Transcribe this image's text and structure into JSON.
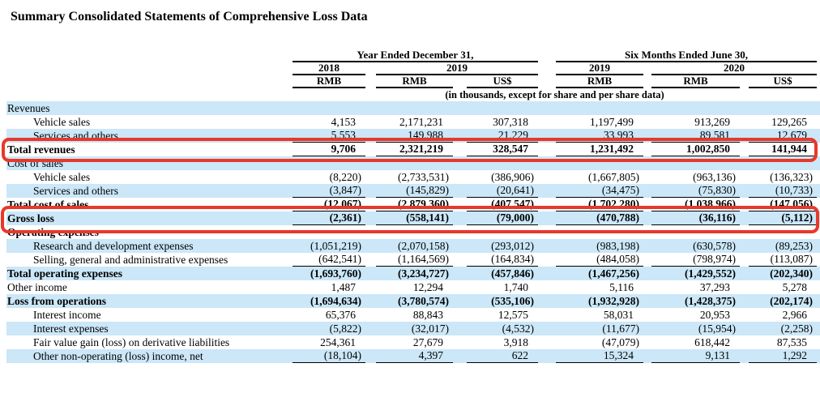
{
  "title": "Summary Consolidated Statements of Comprehensive Loss Data",
  "colors": {
    "highlight": "#e8382a",
    "row_shade": "#cbe7f8"
  },
  "highlighted_rows": [
    "Total revenues",
    "Gross loss"
  ],
  "table": {
    "col_groups": [
      "Year Ended December 31,",
      "Six Months Ended June 30,"
    ],
    "years": [
      "2018",
      "2019",
      "2019",
      "2020"
    ],
    "currencies": [
      "RMB",
      "RMB",
      "US$",
      "RMB",
      "RMB",
      "US$"
    ],
    "note": "(in thousands, except for share and per share data)",
    "rows": [
      {
        "label": "Revenues",
        "indent": false,
        "bold": false,
        "shade": true,
        "underline": false,
        "values": [
          "",
          "",
          "",
          "",
          "",
          ""
        ]
      },
      {
        "label": "Vehicle sales",
        "indent": true,
        "bold": false,
        "shade": false,
        "underline": false,
        "values": [
          "4,153",
          "2,171,231",
          "307,318",
          "1,197,499",
          "913,269",
          "129,265"
        ]
      },
      {
        "label": "Services and others",
        "indent": true,
        "bold": false,
        "shade": true,
        "underline": true,
        "values": [
          "5,553",
          "149,988",
          "21,229",
          "33,993",
          "89,581",
          "12,679"
        ]
      },
      {
        "label": "Total revenues",
        "indent": false,
        "bold": true,
        "shade": false,
        "underline": true,
        "values": [
          "9,706",
          "2,321,219",
          "328,547",
          "1,231,492",
          "1,002,850",
          "141,944"
        ]
      },
      {
        "label": "Cost of sales",
        "indent": false,
        "bold": false,
        "shade": true,
        "underline": false,
        "values": [
          "",
          "",
          "",
          "",
          "",
          ""
        ]
      },
      {
        "label": "Vehicle sales",
        "indent": true,
        "bold": false,
        "shade": false,
        "underline": false,
        "values": [
          "(8,220)",
          "(2,733,531)",
          "(386,906)",
          "(1,667,805)",
          "(963,136)",
          "(136,323)"
        ]
      },
      {
        "label": "Services and others",
        "indent": true,
        "bold": false,
        "shade": true,
        "underline": true,
        "values": [
          "(3,847)",
          "(145,829)",
          "(20,641)",
          "(34,475)",
          "(75,830)",
          "(10,733)"
        ]
      },
      {
        "label": "Total cost of sales",
        "indent": false,
        "bold": true,
        "shade": false,
        "underline": true,
        "values": [
          "(12,067)",
          "(2,879,360)",
          "(407,547)",
          "(1,702,280)",
          "(1,038,966)",
          "(147,056)"
        ]
      },
      {
        "label": "Gross loss",
        "indent": false,
        "bold": true,
        "shade": true,
        "underline": true,
        "values": [
          "(2,361)",
          "(558,141)",
          "(79,000)",
          "(470,788)",
          "(36,116)",
          "(5,112)"
        ]
      },
      {
        "label": "Operating expenses",
        "indent": false,
        "bold": true,
        "shade": false,
        "underline": false,
        "values": [
          "",
          "",
          "",
          "",
          "",
          ""
        ]
      },
      {
        "label": "Research and development expenses",
        "indent": true,
        "bold": false,
        "shade": true,
        "underline": false,
        "values": [
          "(1,051,219)",
          "(2,070,158)",
          "(293,012)",
          "(983,198)",
          "(630,578)",
          "(89,253)"
        ]
      },
      {
        "label": "Selling, general and administrative expenses",
        "indent": true,
        "bold": false,
        "shade": false,
        "underline": true,
        "values": [
          "(642,541)",
          "(1,164,569)",
          "(164,834)",
          "(484,058)",
          "(798,974)",
          "(113,087)"
        ]
      },
      {
        "label": "Total operating expenses",
        "indent": false,
        "bold": true,
        "shade": true,
        "underline": false,
        "values": [
          "(1,693,760)",
          "(3,234,727)",
          "(457,846)",
          "(1,467,256)",
          "(1,429,552)",
          "(202,340)"
        ]
      },
      {
        "label": "Other income",
        "indent": false,
        "bold": false,
        "shade": false,
        "underline": false,
        "values": [
          "1,487",
          "12,294",
          "1,740",
          "5,116",
          "37,293",
          "5,278"
        ]
      },
      {
        "label": "Loss from operations",
        "indent": false,
        "bold": true,
        "shade": true,
        "underline": false,
        "values": [
          "(1,694,634)",
          "(3,780,574)",
          "(535,106)",
          "(1,932,928)",
          "(1,428,375)",
          "(202,174)"
        ]
      },
      {
        "label": "Interest income",
        "indent": true,
        "bold": false,
        "shade": false,
        "underline": false,
        "values": [
          "65,376",
          "88,843",
          "12,575",
          "58,031",
          "20,953",
          "2,966"
        ]
      },
      {
        "label": "Interest expenses",
        "indent": true,
        "bold": false,
        "shade": true,
        "underline": false,
        "values": [
          "(5,822)",
          "(32,017)",
          "(4,532)",
          "(11,677)",
          "(15,954)",
          "(2,258)"
        ]
      },
      {
        "label": "Fair value gain (loss) on derivative liabilities",
        "indent": true,
        "bold": false,
        "shade": false,
        "underline": false,
        "values": [
          "254,361",
          "27,679",
          "3,918",
          "(47,079)",
          "618,442",
          "87,535"
        ]
      },
      {
        "label": "Other non-operating (loss) income, net",
        "indent": true,
        "bold": false,
        "shade": true,
        "underline": true,
        "values": [
          "(18,104)",
          "4,397",
          "622",
          "15,324",
          "9,131",
          "1,292"
        ]
      }
    ]
  }
}
